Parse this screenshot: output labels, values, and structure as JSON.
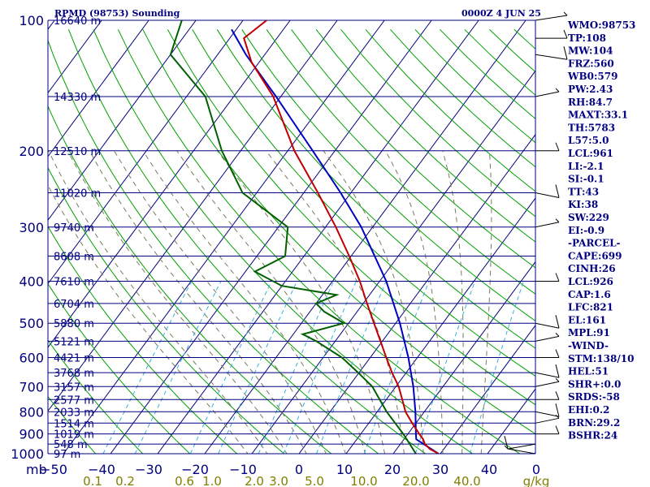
{
  "header": {
    "title": "RPMD (98753) Sounding",
    "time": "0000Z  4 JUN 25"
  },
  "chart_data": {
    "type": "skew-t",
    "pressure_levels": [
      1000,
      900,
      800,
      700,
      600,
      500,
      400,
      300,
      200,
      100
    ],
    "height_labels": [
      {
        "p": 100,
        "label": "16640 m"
      },
      {
        "p": 150,
        "label": "14330 m"
      },
      {
        "p": 200,
        "label": "12510 m"
      },
      {
        "p": 250,
        "label": "11020 m"
      },
      {
        "p": 300,
        "label": "9740 m"
      },
      {
        "p": 350,
        "label": "8608 m"
      },
      {
        "p": 400,
        "label": "7610 m"
      },
      {
        "p": 450,
        "label": "6704 m"
      },
      {
        "p": 500,
        "label": "5880 m"
      },
      {
        "p": 550,
        "label": "5121 m"
      },
      {
        "p": 600,
        "label": "4421 m"
      },
      {
        "p": 650,
        "label": "3768 m"
      },
      {
        "p": 700,
        "label": "3157 m"
      },
      {
        "p": 750,
        "label": "2577 m"
      },
      {
        "p": 800,
        "label": "2033 m"
      },
      {
        "p": 850,
        "label": "1514 m"
      },
      {
        "p": 900,
        "label": "1019 m"
      },
      {
        "p": 950,
        "label": "548 m"
      },
      {
        "p": 1000,
        "label": "97 m"
      }
    ],
    "temp_axis_unit": "mb",
    "temp_ticks": [
      "−50",
      "−40",
      "−30",
      "−20",
      "−10",
      "0",
      "10",
      "20",
      "30",
      "40",
      "0"
    ],
    "mixing_ratio_labels": [
      "0.1",
      "0.2",
      "0.6",
      "1.0",
      "2.0",
      "3.0",
      "5.0",
      "10.0",
      "20.0",
      "40.0",
      "g/kg"
    ],
    "temperature": [
      {
        "p": 1000,
        "t": 29.6
      },
      {
        "p": 975,
        "t": 27.0
      },
      {
        "p": 950,
        "t": 25.2
      },
      {
        "p": 925,
        "t": 24.0
      },
      {
        "p": 900,
        "t": 22.4
      },
      {
        "p": 850,
        "t": 19.2
      },
      {
        "p": 800,
        "t": 16.0
      },
      {
        "p": 750,
        "t": 13.4
      },
      {
        "p": 700,
        "t": 10.6
      },
      {
        "p": 650,
        "t": 7.0
      },
      {
        "p": 600,
        "t": 3.4
      },
      {
        "p": 550,
        "t": -0.4
      },
      {
        "p": 500,
        "t": -4.6
      },
      {
        "p": 450,
        "t": -9.2
      },
      {
        "p": 400,
        "t": -14.2
      },
      {
        "p": 350,
        "t": -20.4
      },
      {
        "p": 300,
        "t": -27.8
      },
      {
        "p": 250,
        "t": -37.0
      },
      {
        "p": 200,
        "t": -48.6
      },
      {
        "p": 150,
        "t": -61.6
      },
      {
        "p": 125,
        "t": -71.6
      },
      {
        "p": 110,
        "t": -77.0
      },
      {
        "p": 100,
        "t": -75.0
      }
    ],
    "dewpoint": [
      {
        "p": 1000,
        "t": 24.8
      },
      {
        "p": 950,
        "t": 22.0
      },
      {
        "p": 900,
        "t": 19.0
      },
      {
        "p": 850,
        "t": 15.6
      },
      {
        "p": 800,
        "t": 12.0
      },
      {
        "p": 750,
        "t": 8.6
      },
      {
        "p": 700,
        "t": 5.0
      },
      {
        "p": 650,
        "t": -0.2
      },
      {
        "p": 600,
        "t": -6.0
      },
      {
        "p": 550,
        "t": -14.0
      },
      {
        "p": 530,
        "t": -18.0
      },
      {
        "p": 500,
        "t": -11.0
      },
      {
        "p": 470,
        "t": -17.0
      },
      {
        "p": 450,
        "t": -20.0
      },
      {
        "p": 430,
        "t": -17.0
      },
      {
        "p": 410,
        "t": -30.0
      },
      {
        "p": 380,
        "t": -38.0
      },
      {
        "p": 350,
        "t": -34.0
      },
      {
        "p": 300,
        "t": -38.0
      },
      {
        "p": 250,
        "t": -53.0
      },
      {
        "p": 200,
        "t": -64.0
      },
      {
        "p": 150,
        "t": -76.0
      },
      {
        "p": 120,
        "t": -90.0
      },
      {
        "p": 100,
        "t": -93.0
      }
    ],
    "parcel": [
      {
        "p": 1000,
        "t": 29.6
      },
      {
        "p": 926,
        "t": 22.6
      },
      {
        "p": 900,
        "t": 21.7
      },
      {
        "p": 800,
        "t": 18.1
      },
      {
        "p": 700,
        "t": 13.7
      },
      {
        "p": 600,
        "t": 8.1
      },
      {
        "p": 500,
        "t": 0.9
      },
      {
        "p": 400,
        "t": -8.6
      },
      {
        "p": 300,
        "t": -22.4
      },
      {
        "p": 250,
        "t": -32.2
      },
      {
        "p": 200,
        "t": -44.7
      },
      {
        "p": 150,
        "t": -61.0
      },
      {
        "p": 120,
        "t": -74.0
      },
      {
        "p": 105,
        "t": -81.0
      }
    ],
    "wind_barb_levels": [
      100,
      110,
      120,
      150,
      200,
      250,
      300,
      400,
      500,
      550,
      600,
      650,
      700,
      750,
      800,
      850,
      900,
      950,
      1000
    ],
    "legend": "none",
    "grid": true
  },
  "indices": [
    "WMO:98753",
    "TP:108",
    "MW:104",
    "FRZ:560",
    "WB0:579",
    "PW:2.43",
    "RH:84.7",
    "MAXT:33.1",
    "TH:5783",
    "L57:5.0",
    "LCL:961",
    "LI:-2.1",
    "SI:-0.1",
    "TT:43",
    "KI:38",
    "SW:229",
    "EI:-0.9",
    "-PARCEL-",
    "CAPE:699",
    "CINH:26",
    "LCL:926",
    "CAP:1.6",
    "LFC:821",
    "EL:161",
    "MPL:91",
    "-WIND-",
    "STM:138/10",
    "HEL:51",
    "SHR+:0.0",
    "SRDS:-58",
    "EHI:0.2",
    "BRN:29.2",
    "BSHR:24"
  ],
  "colors": {
    "isobar": "#000080",
    "isotherm": "#000080",
    "dry_adiabat": "#00a000",
    "moist_adiabat": "#7a7a5a",
    "mixing_ratio": "#38b0e0",
    "temperature": "#c00000",
    "dewpoint": "#006000",
    "parcel": "#0000c0",
    "text": "#000080",
    "mixing_label": "#808000"
  }
}
